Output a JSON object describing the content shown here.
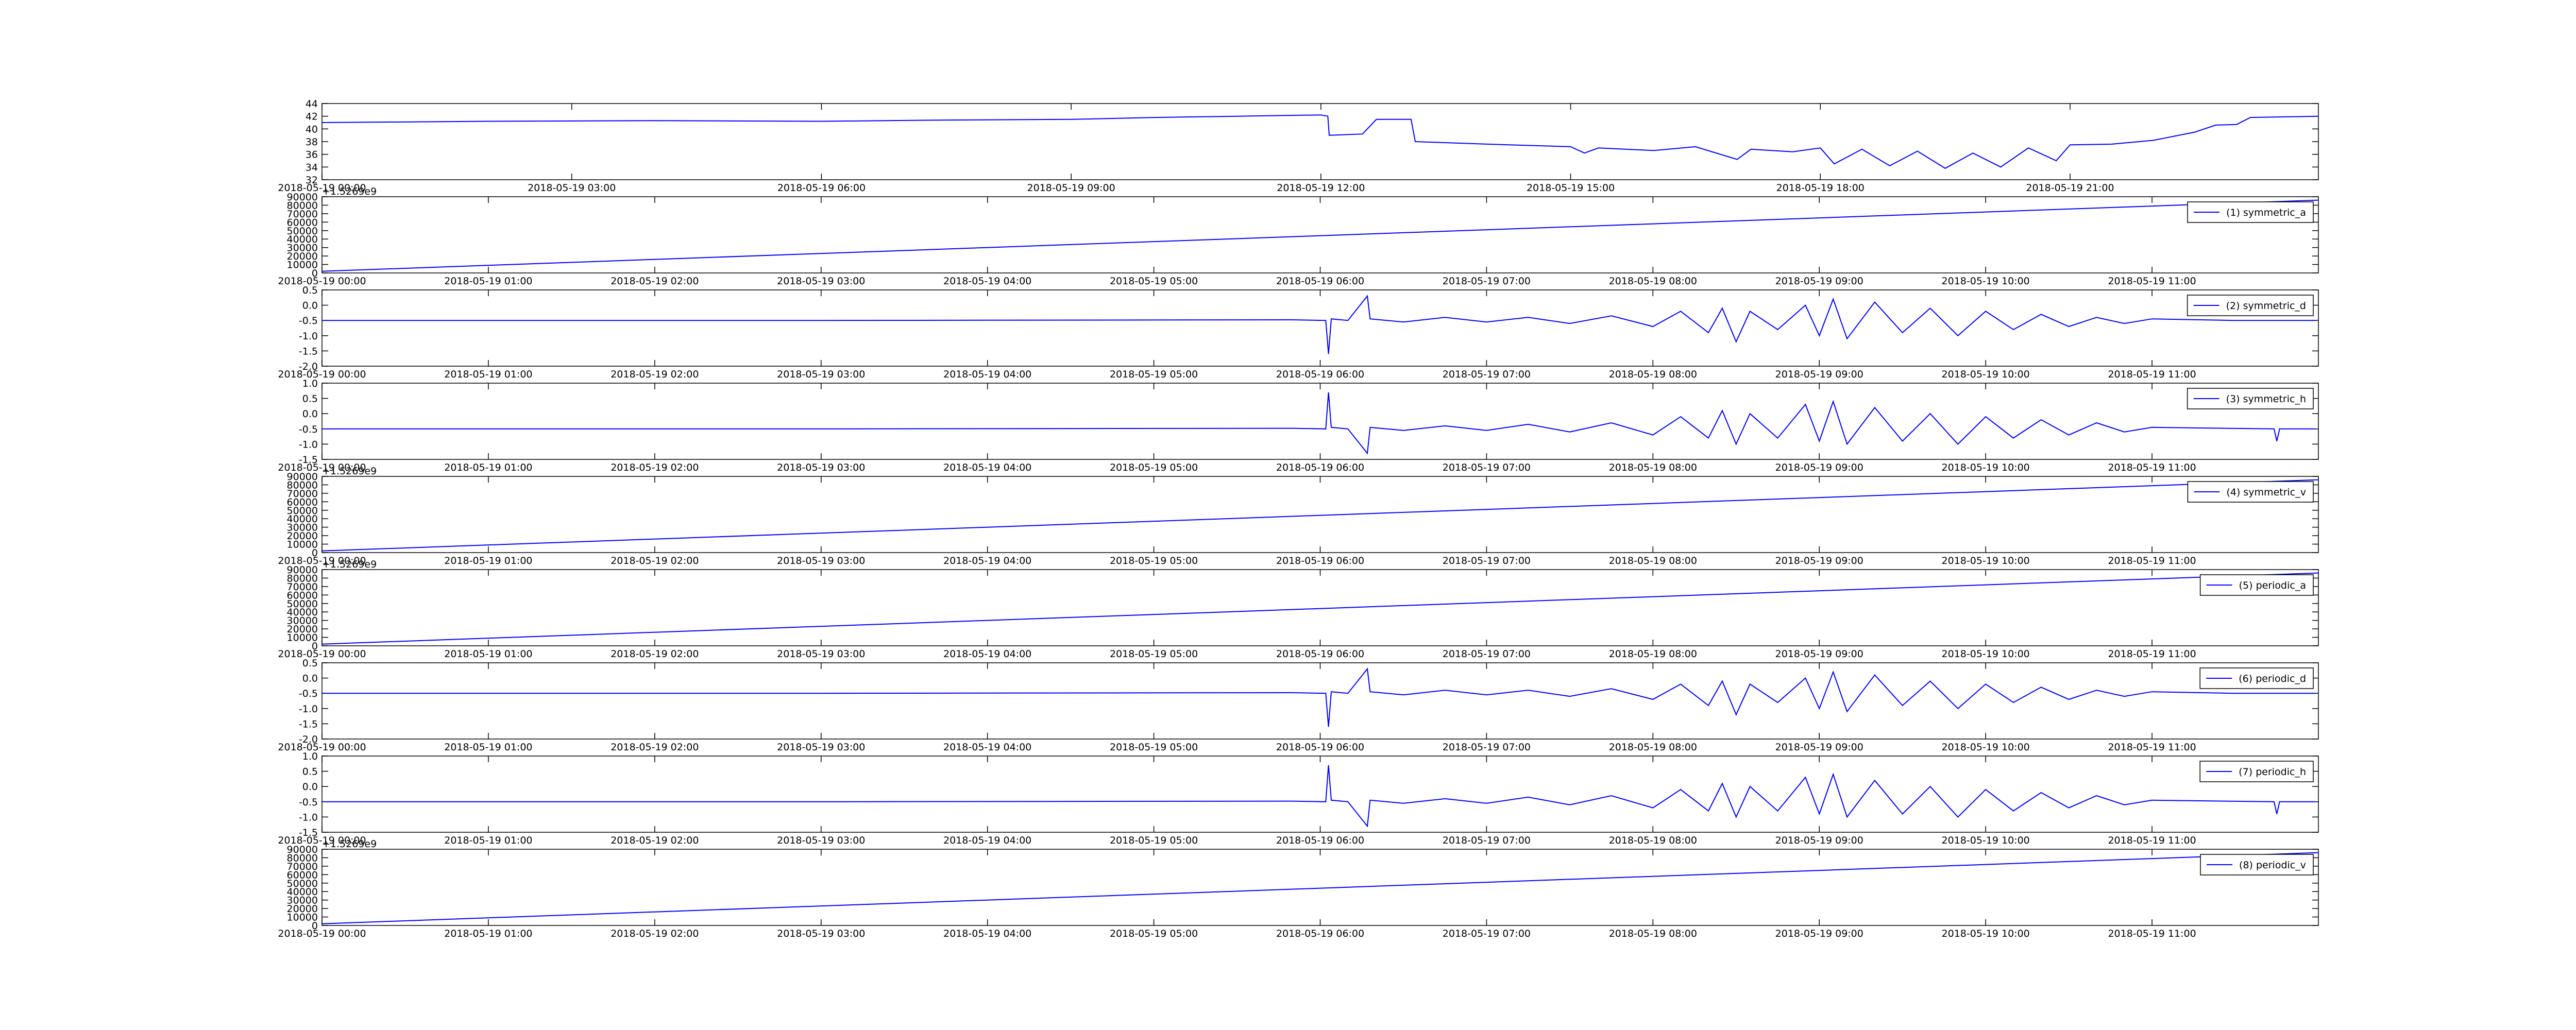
{
  "chart_data": [
    {
      "type": "line",
      "xlim": [
        "2018-05-19 00:00",
        "2018-05-19 23:59"
      ],
      "xticks": [
        "2018-05-19 00:00",
        "2018-05-19 03:00",
        "2018-05-19 06:00",
        "2018-05-19 09:00",
        "2018-05-19 12:00",
        "2018-05-19 15:00",
        "2018-05-19 18:00",
        "2018-05-19 21:00"
      ],
      "ylim": [
        32,
        44
      ],
      "yticks": [
        32,
        34,
        36,
        38,
        40,
        42,
        44
      ],
      "series": [
        {
          "color": "#0000ff",
          "x": [
            "2018-05-19 00:00",
            "2018-05-19 02:00",
            "2018-05-19 04:00",
            "2018-05-19 06:00",
            "2018-05-19 07:30",
            "2018-05-19 09:00",
            "2018-05-19 10:00",
            "2018-05-19 11:00",
            "2018-05-19 12:00",
            "2018-05-19 12:05",
            "2018-05-19 12:06",
            "2018-05-19 12:30",
            "2018-05-19 12:40",
            "2018-05-19 13:05",
            "2018-05-19 13:08",
            "2018-05-19 14:00",
            "2018-05-19 15:00",
            "2018-05-19 15:10",
            "2018-05-19 15:20",
            "2018-05-19 16:00",
            "2018-05-19 16:30",
            "2018-05-19 17:00",
            "2018-05-19 17:10",
            "2018-05-19 17:40",
            "2018-05-19 18:00",
            "2018-05-19 18:10",
            "2018-05-19 18:30",
            "2018-05-19 18:50",
            "2018-05-19 19:10",
            "2018-05-19 19:30",
            "2018-05-19 19:50",
            "2018-05-19 20:10",
            "2018-05-19 20:30",
            "2018-05-19 20:50",
            "2018-05-19 21:00",
            "2018-05-19 21:30",
            "2018-05-19 22:00",
            "2018-05-19 22:30",
            "2018-05-19 22:45",
            "2018-05-19 23:00",
            "2018-05-19 23:10",
            "2018-05-19 23:59"
          ],
          "values": [
            41,
            41.2,
            41.3,
            41.2,
            41.4,
            41.5,
            41.8,
            42,
            42.2,
            42,
            39,
            39.2,
            41.5,
            41.5,
            38,
            37.6,
            37.2,
            36.2,
            37,
            36.6,
            37.2,
            35.2,
            36.8,
            36.4,
            37,
            34.5,
            36.8,
            34.2,
            36.5,
            33.8,
            36.2,
            34,
            37,
            35,
            37.5,
            37.6,
            38.2,
            39.5,
            40.6,
            40.7,
            41.8,
            42
          ]
        }
      ]
    },
    {
      "type": "line",
      "offset_text": "+1.5269e9",
      "xlim": [
        "2018-05-19 00:00",
        "2018-05-19 12:00"
      ],
      "xticks": [
        "2018-05-19 00:00",
        "2018-05-19 01:00",
        "2018-05-19 02:00",
        "2018-05-19 03:00",
        "2018-05-19 04:00",
        "2018-05-19 05:00",
        "2018-05-19 06:00",
        "2018-05-19 07:00",
        "2018-05-19 08:00",
        "2018-05-19 09:00",
        "2018-05-19 10:00",
        "2018-05-19 11:00"
      ],
      "ylim": [
        0,
        90000
      ],
      "yticks": [
        0,
        10000,
        20000,
        30000,
        40000,
        50000,
        60000,
        70000,
        80000,
        90000
      ],
      "legend": "upper right",
      "series": [
        {
          "name": "(1) symmetric_a",
          "color": "#0000ff",
          "x": [
            "2018-05-19 00:00",
            "2018-05-19 12:00"
          ],
          "values": [
            2000,
            86000
          ]
        }
      ]
    },
    {
      "type": "line",
      "xlim": [
        "2018-05-19 00:00",
        "2018-05-19 12:00"
      ],
      "xticks": [
        "2018-05-19 00:00",
        "2018-05-19 01:00",
        "2018-05-19 02:00",
        "2018-05-19 03:00",
        "2018-05-19 04:00",
        "2018-05-19 05:00",
        "2018-05-19 06:00",
        "2018-05-19 07:00",
        "2018-05-19 08:00",
        "2018-05-19 09:00",
        "2018-05-19 10:00",
        "2018-05-19 11:00"
      ],
      "ylim": [
        -2,
        0.5
      ],
      "yticks": [
        {
          "value": -2,
          "label": "-2.0"
        },
        -1.5,
        {
          "value": -1,
          "label": "-1.0"
        },
        -0.5,
        {
          "value": 0,
          "label": "0.0"
        },
        0.5
      ],
      "legend": "upper right",
      "series": [
        {
          "name": "(2) symmetric_d",
          "color": "#0000ff",
          "x": [
            "2018-05-19 00:00",
            "2018-05-19 03:00",
            "2018-05-19 05:50",
            "2018-05-19 06:02",
            "2018-05-19 06:03",
            "2018-05-19 06:04",
            "2018-05-19 06:10",
            "2018-05-19 06:17",
            "2018-05-19 06:18",
            "2018-05-19 06:30",
            "2018-05-19 06:45",
            "2018-05-19 07:00",
            "2018-05-19 07:15",
            "2018-05-19 07:30",
            "2018-05-19 07:45",
            "2018-05-19 08:00",
            "2018-05-19 08:10",
            "2018-05-19 08:20",
            "2018-05-19 08:25",
            "2018-05-19 08:30",
            "2018-05-19 08:35",
            "2018-05-19 08:45",
            "2018-05-19 08:55",
            "2018-05-19 09:00",
            "2018-05-19 09:05",
            "2018-05-19 09:10",
            "2018-05-19 09:20",
            "2018-05-19 09:30",
            "2018-05-19 09:40",
            "2018-05-19 09:50",
            "2018-05-19 10:00",
            "2018-05-19 10:10",
            "2018-05-19 10:20",
            "2018-05-19 10:30",
            "2018-05-19 10:40",
            "2018-05-19 10:50",
            "2018-05-19 11:00",
            "2018-05-19 11:30",
            "2018-05-19 11:59"
          ],
          "values": [
            -0.5,
            -0.5,
            -0.48,
            -0.5,
            -1.6,
            -0.45,
            -0.5,
            0.3,
            -0.45,
            -0.55,
            -0.4,
            -0.55,
            -0.4,
            -0.6,
            -0.35,
            -0.7,
            -0.2,
            -0.9,
            -0.1,
            -1.2,
            -0.2,
            -0.8,
            0,
            -1,
            0.2,
            -1.1,
            0.1,
            -0.9,
            -0.1,
            -1,
            -0.2,
            -0.8,
            -0.3,
            -0.7,
            -0.4,
            -0.6,
            -0.45,
            -0.5,
            -0.5
          ]
        }
      ]
    },
    {
      "type": "line",
      "xlim": [
        "2018-05-19 00:00",
        "2018-05-19 12:00"
      ],
      "xticks": [
        "2018-05-19 00:00",
        "2018-05-19 01:00",
        "2018-05-19 02:00",
        "2018-05-19 03:00",
        "2018-05-19 04:00",
        "2018-05-19 05:00",
        "2018-05-19 06:00",
        "2018-05-19 07:00",
        "2018-05-19 08:00",
        "2018-05-19 09:00",
        "2018-05-19 10:00",
        "2018-05-19 11:00"
      ],
      "ylim": [
        -1.5,
        1
      ],
      "yticks": [
        -1.5,
        {
          "value": -1,
          "label": "-1.0"
        },
        -0.5,
        {
          "value": 0,
          "label": "0.0"
        },
        0.5,
        {
          "value": 1,
          "label": "1.0"
        }
      ],
      "legend": "upper right",
      "series": [
        {
          "name": "(3) symmetric_h",
          "color": "#0000ff",
          "x": [
            "2018-05-19 00:00",
            "2018-05-19 03:00",
            "2018-05-19 05:50",
            "2018-05-19 06:02",
            "2018-05-19 06:03",
            "2018-05-19 06:04",
            "2018-05-19 06:10",
            "2018-05-19 06:17",
            "2018-05-19 06:18",
            "2018-05-19 06:30",
            "2018-05-19 06:45",
            "2018-05-19 07:00",
            "2018-05-19 07:15",
            "2018-05-19 07:30",
            "2018-05-19 07:45",
            "2018-05-19 08:00",
            "2018-05-19 08:10",
            "2018-05-19 08:20",
            "2018-05-19 08:25",
            "2018-05-19 08:30",
            "2018-05-19 08:35",
            "2018-05-19 08:45",
            "2018-05-19 08:55",
            "2018-05-19 09:00",
            "2018-05-19 09:05",
            "2018-05-19 09:10",
            "2018-05-19 09:20",
            "2018-05-19 09:30",
            "2018-05-19 09:40",
            "2018-05-19 09:50",
            "2018-05-19 10:00",
            "2018-05-19 10:10",
            "2018-05-19 10:20",
            "2018-05-19 10:30",
            "2018-05-19 10:40",
            "2018-05-19 10:50",
            "2018-05-19 11:00",
            "2018-05-19 11:44",
            "2018-05-19 11:45",
            "2018-05-19 11:46",
            "2018-05-19 11:59"
          ],
          "values": [
            -0.5,
            -0.5,
            -0.48,
            -0.5,
            0.7,
            -0.45,
            -0.5,
            -1.3,
            -0.45,
            -0.55,
            -0.4,
            -0.55,
            -0.35,
            -0.6,
            -0.3,
            -0.7,
            -0.1,
            -0.8,
            0.1,
            -1,
            0,
            -0.8,
            0.3,
            -0.9,
            0.4,
            -1,
            0.2,
            -0.9,
            0,
            -1,
            -0.1,
            -0.8,
            -0.2,
            -0.7,
            -0.3,
            -0.6,
            -0.45,
            -0.5,
            -0.9,
            -0.5,
            -0.5
          ]
        }
      ]
    },
    {
      "type": "line",
      "offset_text": "+1.5269e9",
      "xlim": [
        "2018-05-19 00:00",
        "2018-05-19 12:00"
      ],
      "xticks": [
        "2018-05-19 00:00",
        "2018-05-19 01:00",
        "2018-05-19 02:00",
        "2018-05-19 03:00",
        "2018-05-19 04:00",
        "2018-05-19 05:00",
        "2018-05-19 06:00",
        "2018-05-19 07:00",
        "2018-05-19 08:00",
        "2018-05-19 09:00",
        "2018-05-19 10:00",
        "2018-05-19 11:00"
      ],
      "ylim": [
        0,
        90000
      ],
      "yticks": [
        0,
        10000,
        20000,
        30000,
        40000,
        50000,
        60000,
        70000,
        80000,
        90000
      ],
      "legend": "upper right",
      "series": [
        {
          "name": "(4) symmetric_v",
          "color": "#0000ff",
          "x": [
            "2018-05-19 00:00",
            "2018-05-19 12:00"
          ],
          "values": [
            2000,
            86000
          ]
        }
      ]
    },
    {
      "type": "line",
      "offset_text": "+1.5269e9",
      "xlim": [
        "2018-05-19 00:00",
        "2018-05-19 12:00"
      ],
      "xticks": [
        "2018-05-19 00:00",
        "2018-05-19 01:00",
        "2018-05-19 02:00",
        "2018-05-19 03:00",
        "2018-05-19 04:00",
        "2018-05-19 05:00",
        "2018-05-19 06:00",
        "2018-05-19 07:00",
        "2018-05-19 08:00",
        "2018-05-19 09:00",
        "2018-05-19 10:00",
        "2018-05-19 11:00"
      ],
      "ylim": [
        0,
        90000
      ],
      "yticks": [
        0,
        10000,
        20000,
        30000,
        40000,
        50000,
        60000,
        70000,
        80000,
        90000
      ],
      "legend": "upper right",
      "series": [
        {
          "name": "(5) periodic_a",
          "color": "#0000ff",
          "x": [
            "2018-05-19 00:00",
            "2018-05-19 12:00"
          ],
          "values": [
            2000,
            86000
          ]
        }
      ]
    },
    {
      "type": "line",
      "xlim": [
        "2018-05-19 00:00",
        "2018-05-19 12:00"
      ],
      "xticks": [
        "2018-05-19 00:00",
        "2018-05-19 01:00",
        "2018-05-19 02:00",
        "2018-05-19 03:00",
        "2018-05-19 04:00",
        "2018-05-19 05:00",
        "2018-05-19 06:00",
        "2018-05-19 07:00",
        "2018-05-19 08:00",
        "2018-05-19 09:00",
        "2018-05-19 10:00",
        "2018-05-19 11:00"
      ],
      "ylim": [
        -2,
        0.5
      ],
      "yticks": [
        {
          "value": -2,
          "label": "-2.0"
        },
        -1.5,
        {
          "value": -1,
          "label": "-1.0"
        },
        -0.5,
        {
          "value": 0,
          "label": "0.0"
        },
        0.5
      ],
      "legend": "upper right",
      "series": [
        {
          "name": "(6) periodic_d",
          "color": "#0000ff",
          "x": [
            "2018-05-19 00:00",
            "2018-05-19 03:00",
            "2018-05-19 05:50",
            "2018-05-19 06:02",
            "2018-05-19 06:03",
            "2018-05-19 06:04",
            "2018-05-19 06:10",
            "2018-05-19 06:17",
            "2018-05-19 06:18",
            "2018-05-19 06:30",
            "2018-05-19 06:45",
            "2018-05-19 07:00",
            "2018-05-19 07:15",
            "2018-05-19 07:30",
            "2018-05-19 07:45",
            "2018-05-19 08:00",
            "2018-05-19 08:10",
            "2018-05-19 08:20",
            "2018-05-19 08:25",
            "2018-05-19 08:30",
            "2018-05-19 08:35",
            "2018-05-19 08:45",
            "2018-05-19 08:55",
            "2018-05-19 09:00",
            "2018-05-19 09:05",
            "2018-05-19 09:10",
            "2018-05-19 09:20",
            "2018-05-19 09:30",
            "2018-05-19 09:40",
            "2018-05-19 09:50",
            "2018-05-19 10:00",
            "2018-05-19 10:10",
            "2018-05-19 10:20",
            "2018-05-19 10:30",
            "2018-05-19 10:40",
            "2018-05-19 10:50",
            "2018-05-19 11:00",
            "2018-05-19 11:30",
            "2018-05-19 11:59"
          ],
          "values": [
            -0.5,
            -0.5,
            -0.48,
            -0.5,
            -1.6,
            -0.45,
            -0.5,
            0.3,
            -0.45,
            -0.55,
            -0.4,
            -0.55,
            -0.4,
            -0.6,
            -0.35,
            -0.7,
            -0.2,
            -0.9,
            -0.1,
            -1.2,
            -0.2,
            -0.8,
            0,
            -1,
            0.2,
            -1.1,
            0.1,
            -0.9,
            -0.1,
            -1,
            -0.2,
            -0.8,
            -0.3,
            -0.7,
            -0.4,
            -0.6,
            -0.45,
            -0.5,
            -0.5
          ]
        }
      ]
    },
    {
      "type": "line",
      "xlim": [
        "2018-05-19 00:00",
        "2018-05-19 12:00"
      ],
      "xticks": [
        "2018-05-19 00:00",
        "2018-05-19 01:00",
        "2018-05-19 02:00",
        "2018-05-19 03:00",
        "2018-05-19 04:00",
        "2018-05-19 05:00",
        "2018-05-19 06:00",
        "2018-05-19 07:00",
        "2018-05-19 08:00",
        "2018-05-19 09:00",
        "2018-05-19 10:00",
        "2018-05-19 11:00"
      ],
      "ylim": [
        -1.5,
        1
      ],
      "yticks": [
        -1.5,
        {
          "value": -1,
          "label": "-1.0"
        },
        -0.5,
        {
          "value": 0,
          "label": "0.0"
        },
        0.5,
        {
          "value": 1,
          "label": "1.0"
        }
      ],
      "legend": "upper right",
      "series": [
        {
          "name": "(7) periodic_h",
          "color": "#0000ff",
          "x": [
            "2018-05-19 00:00",
            "2018-05-19 03:00",
            "2018-05-19 05:50",
            "2018-05-19 06:02",
            "2018-05-19 06:03",
            "2018-05-19 06:04",
            "2018-05-19 06:10",
            "2018-05-19 06:17",
            "2018-05-19 06:18",
            "2018-05-19 06:30",
            "2018-05-19 06:45",
            "2018-05-19 07:00",
            "2018-05-19 07:15",
            "2018-05-19 07:30",
            "2018-05-19 07:45",
            "2018-05-19 08:00",
            "2018-05-19 08:10",
            "2018-05-19 08:20",
            "2018-05-19 08:25",
            "2018-05-19 08:30",
            "2018-05-19 08:35",
            "2018-05-19 08:45",
            "2018-05-19 08:55",
            "2018-05-19 09:00",
            "2018-05-19 09:05",
            "2018-05-19 09:10",
            "2018-05-19 09:20",
            "2018-05-19 09:30",
            "2018-05-19 09:40",
            "2018-05-19 09:50",
            "2018-05-19 10:00",
            "2018-05-19 10:10",
            "2018-05-19 10:20",
            "2018-05-19 10:30",
            "2018-05-19 10:40",
            "2018-05-19 10:50",
            "2018-05-19 11:00",
            "2018-05-19 11:44",
            "2018-05-19 11:45",
            "2018-05-19 11:46",
            "2018-05-19 11:59"
          ],
          "values": [
            -0.5,
            -0.5,
            -0.48,
            -0.5,
            0.7,
            -0.45,
            -0.5,
            -1.3,
            -0.45,
            -0.55,
            -0.4,
            -0.55,
            -0.35,
            -0.6,
            -0.3,
            -0.7,
            -0.1,
            -0.8,
            0.1,
            -1,
            0,
            -0.8,
            0.3,
            -0.9,
            0.4,
            -1,
            0.2,
            -0.9,
            0,
            -1,
            -0.1,
            -0.8,
            -0.2,
            -0.7,
            -0.3,
            -0.6,
            -0.45,
            -0.5,
            -0.9,
            -0.5,
            -0.5
          ]
        }
      ]
    },
    {
      "type": "line",
      "offset_text": "+1.5269e9",
      "xlim": [
        "2018-05-19 00:00",
        "2018-05-19 12:00"
      ],
      "xticks": [
        "2018-05-19 00:00",
        "2018-05-19 01:00",
        "2018-05-19 02:00",
        "2018-05-19 03:00",
        "2018-05-19 04:00",
        "2018-05-19 05:00",
        "2018-05-19 06:00",
        "2018-05-19 07:00",
        "2018-05-19 08:00",
        "2018-05-19 09:00",
        "2018-05-19 10:00",
        "2018-05-19 11:00"
      ],
      "ylim": [
        0,
        90000
      ],
      "yticks": [
        0,
        10000,
        20000,
        30000,
        40000,
        50000,
        60000,
        70000,
        80000,
        90000
      ],
      "legend": "upper right",
      "series": [
        {
          "name": "(8) periodic_v",
          "color": "#0000ff",
          "x": [
            "2018-05-19 00:00",
            "2018-05-19 12:00"
          ],
          "values": [
            2000,
            86000
          ]
        }
      ]
    }
  ]
}
